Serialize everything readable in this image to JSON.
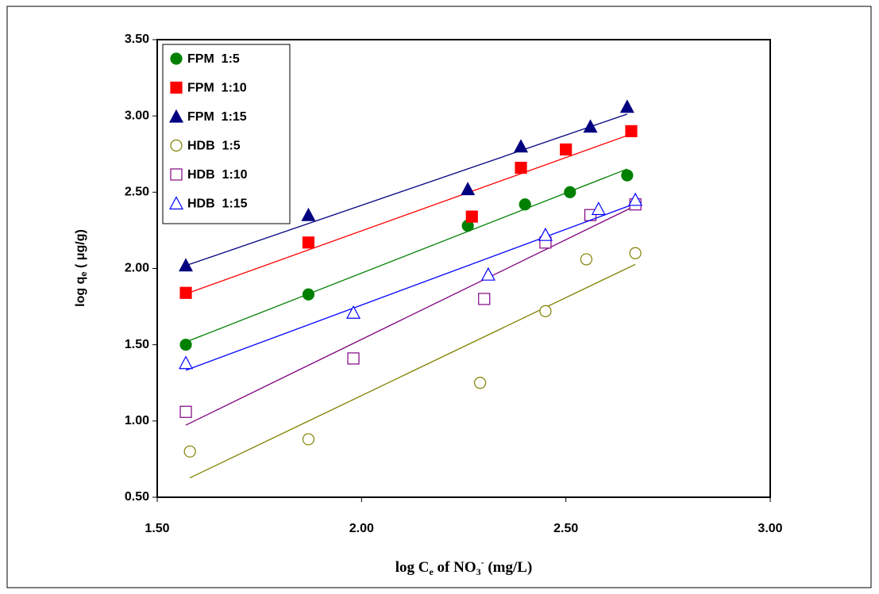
{
  "chart_data": {
    "type": "scatter",
    "x_label": {
      "main": "log  C",
      "sub": "e",
      "mid": "  of  NO",
      "sub2": "3",
      "sup": "-",
      "rest": "  (mg/L)"
    },
    "y_label": {
      "main": "log q",
      "sub": "e",
      "rest": " ( μg/g)"
    },
    "xlim": [
      1.5,
      3.0
    ],
    "xticks": [
      {
        "value": 1.5,
        "label": "1.50"
      },
      {
        "value": 2.0,
        "label": "2.00"
      },
      {
        "value": 2.5,
        "label": "2.50"
      },
      {
        "value": 3.0,
        "label": "3.00"
      }
    ],
    "ylim": [
      0.5,
      3.5
    ],
    "yticks": [
      {
        "value": 0.5,
        "label": "0.50"
      },
      {
        "value": 1.0,
        "label": "1.00"
      },
      {
        "value": 1.5,
        "label": "1.50"
      },
      {
        "value": 2.0,
        "label": "2.00"
      },
      {
        "value": 2.5,
        "label": "2.50"
      },
      {
        "value": 3.0,
        "label": "3.00"
      },
      {
        "value": 3.5,
        "label": "3.50"
      }
    ],
    "trendline": true,
    "legend": "top-left",
    "series": [
      {
        "name": "FPM  1:5",
        "color": "#008000",
        "marker": "circle",
        "filled": true,
        "x": [
          1.57,
          1.87,
          2.26,
          2.4,
          2.51,
          2.65
        ],
        "values": [
          1.5,
          1.83,
          2.28,
          2.42,
          2.5,
          2.61
        ]
      },
      {
        "name": "FPM  1:10",
        "color": "#ff0000",
        "marker": "square",
        "filled": true,
        "x": [
          1.57,
          1.87,
          2.27,
          2.39,
          2.5,
          2.66
        ],
        "values": [
          1.84,
          2.17,
          2.34,
          2.66,
          2.78,
          2.9
        ]
      },
      {
        "name": "FPM  1:15",
        "color": "#000080",
        "marker": "triangle",
        "filled": true,
        "x": [
          1.57,
          1.87,
          2.26,
          2.39,
          2.56,
          2.65
        ],
        "values": [
          2.02,
          2.35,
          2.52,
          2.8,
          2.93,
          3.06
        ]
      },
      {
        "name": "HDB  1:5",
        "color": "#808000",
        "marker": "circle",
        "filled": false,
        "x": [
          1.58,
          1.87,
          2.29,
          2.45,
          2.55,
          2.67
        ],
        "values": [
          0.8,
          0.88,
          1.25,
          1.72,
          2.06,
          2.1
        ]
      },
      {
        "name": "HDB  1:10",
        "color": "#800080",
        "marker": "square",
        "filled": false,
        "x": [
          1.57,
          1.98,
          2.3,
          2.45,
          2.56,
          2.67
        ],
        "values": [
          1.06,
          1.41,
          1.8,
          2.17,
          2.35,
          2.42
        ]
      },
      {
        "name": "HDB  1:15",
        "color": "#0000ff",
        "marker": "triangle",
        "filled": false,
        "x": [
          1.57,
          1.98,
          2.31,
          2.45,
          2.58,
          2.67
        ],
        "values": [
          1.38,
          1.71,
          1.96,
          2.22,
          2.39,
          2.45
        ]
      }
    ]
  }
}
